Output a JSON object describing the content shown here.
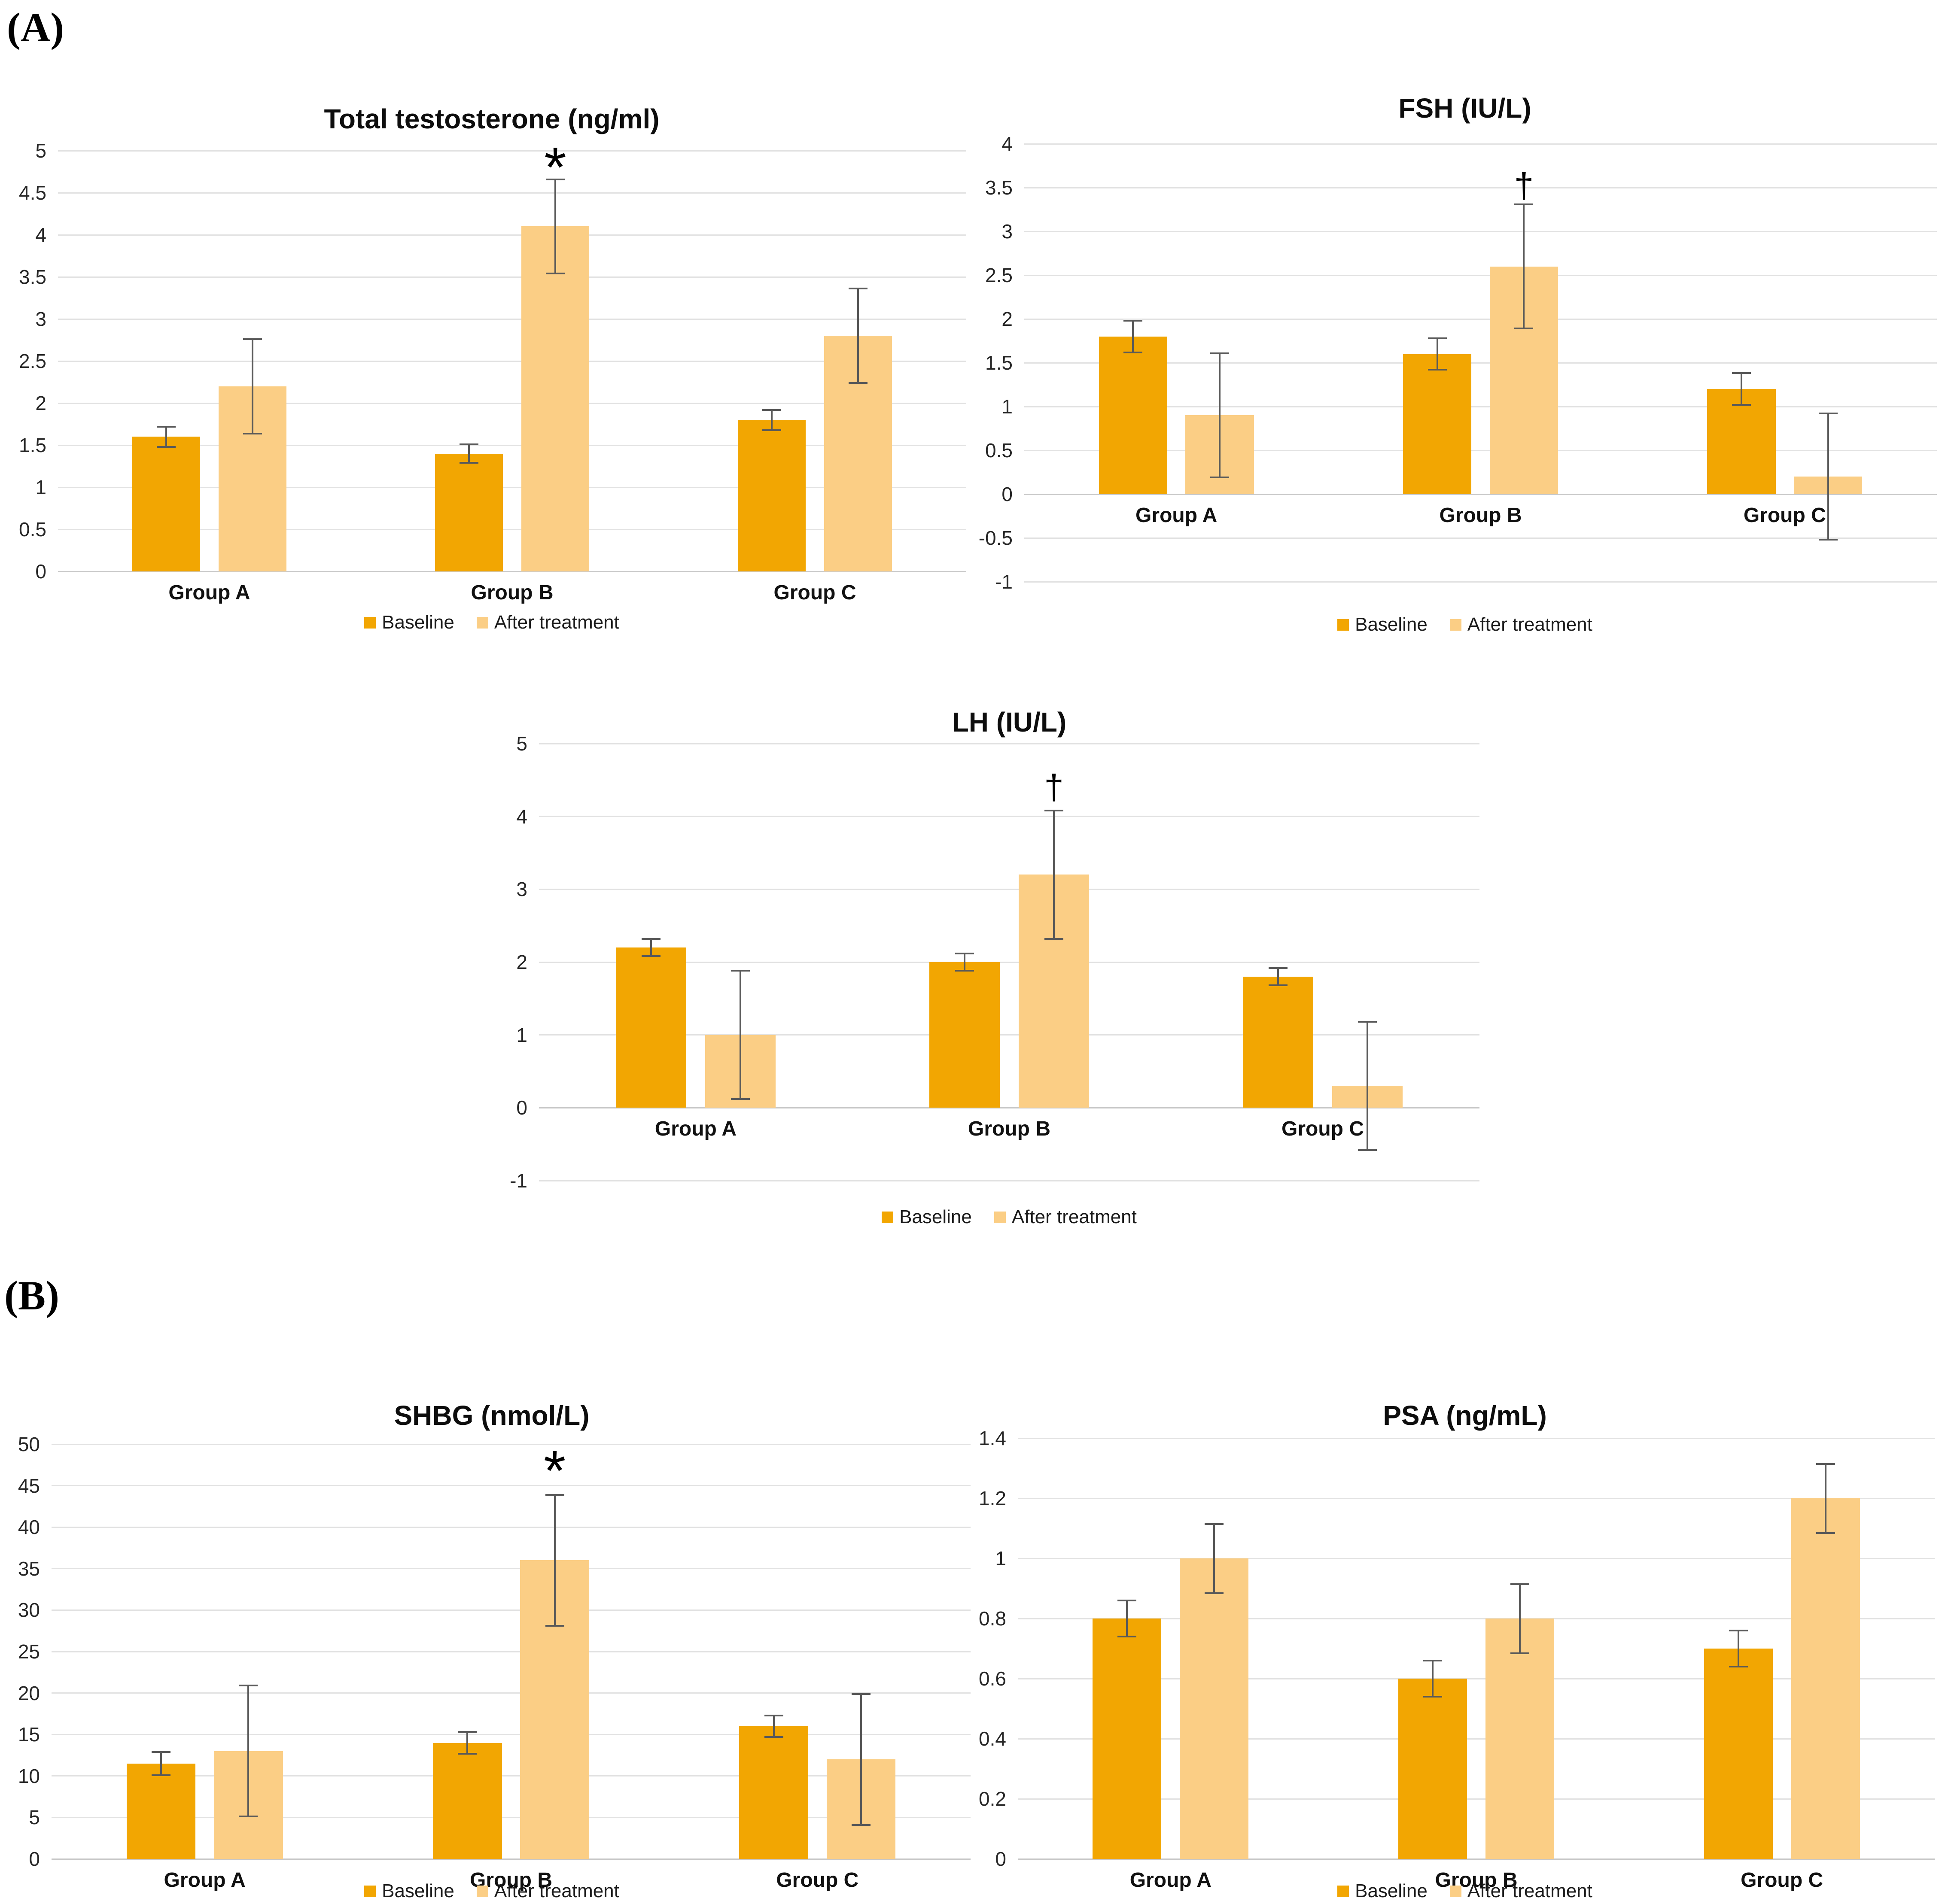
{
  "panels": {
    "a_label": "(A)",
    "b_label": "(B)"
  },
  "colors": {
    "baseline": "#F2A602",
    "after": "#FBCE85",
    "gridline": "#E2E2E2",
    "zero_line": "#C9C9C9",
    "error_bar": "#595959",
    "text": "#000000"
  },
  "legend": {
    "baseline": "Baseline",
    "after": "After treatment"
  },
  "chart_data": [
    {
      "type": "bar",
      "title": "Total testosterone (ng/ml)",
      "categories": [
        "Group A",
        "Group B",
        "Group C"
      ],
      "ylim": [
        0,
        5
      ],
      "yticks": [
        5,
        4.5,
        4,
        3.5,
        3,
        2.5,
        2,
        1.5,
        1,
        0.5,
        0
      ],
      "ytick_labels": [
        "5",
        "4.5",
        "4",
        "3.5",
        "3",
        "2.5",
        "2",
        "1.5",
        "1",
        "0.5",
        "0"
      ],
      "grid": true,
      "legend_position": "bottom",
      "series": [
        {
          "name": "Baseline",
          "values": [
            1.6,
            1.4,
            1.8
          ],
          "errors": [
            0.12,
            0.11,
            0.12
          ]
        },
        {
          "name": "After treatment",
          "values": [
            2.2,
            4.1,
            2.8
          ],
          "errors": [
            0.56,
            0.56,
            0.56
          ]
        }
      ],
      "annotations": [
        {
          "category": "Group B",
          "series": "After treatment",
          "symbol": "*",
          "y": 4.8
        }
      ]
    },
    {
      "type": "bar",
      "title": "FSH (IU/L)",
      "categories": [
        "Group A",
        "Group B",
        "Group C"
      ],
      "ylim": [
        -1,
        4
      ],
      "yticks": [
        4,
        3.5,
        3,
        2.5,
        2,
        1.5,
        1,
        0.5,
        0,
        -0.5,
        -1
      ],
      "ytick_labels": [
        "4",
        "3.5",
        "3",
        "2.5",
        "2",
        "1.5",
        "1",
        "0.5",
        "0",
        "-0.5",
        "-1"
      ],
      "grid": true,
      "legend_position": "bottom",
      "series": [
        {
          "name": "Baseline",
          "values": [
            1.8,
            1.6,
            1.2
          ],
          "errors": [
            0.18,
            0.18,
            0.18
          ]
        },
        {
          "name": "After treatment",
          "values": [
            0.9,
            2.6,
            0.2
          ],
          "errors": [
            0.71,
            0.71,
            0.72
          ]
        }
      ],
      "annotations": [
        {
          "category": "Group B",
          "series": "After treatment",
          "symbol": "†",
          "y": 3.52
        }
      ]
    },
    {
      "type": "bar",
      "title": "LH (IU/L)",
      "categories": [
        "Group A",
        "Group B",
        "Group C"
      ],
      "ylim": [
        -1,
        5
      ],
      "yticks": [
        5,
        4,
        3,
        2,
        1,
        0,
        -1
      ],
      "ytick_labels": [
        "5",
        "4",
        "3",
        "2",
        "1",
        "0",
        "-1"
      ],
      "grid": true,
      "legend_position": "bottom",
      "series": [
        {
          "name": "Baseline",
          "values": [
            2.2,
            2.0,
            1.8
          ],
          "errors": [
            0.12,
            0.12,
            0.12
          ]
        },
        {
          "name": "After treatment",
          "values": [
            1.0,
            3.2,
            0.3
          ],
          "errors": [
            0.88,
            0.88,
            0.88
          ]
        }
      ],
      "annotations": [
        {
          "category": "Group B",
          "series": "After treatment",
          "symbol": "†",
          "y": 4.4
        }
      ]
    },
    {
      "type": "bar",
      "title": "SHBG (nmol/L)",
      "categories": [
        "Group A",
        "Group B",
        "Group C"
      ],
      "ylim": [
        0,
        50
      ],
      "yticks": [
        50,
        45,
        40,
        35,
        30,
        25,
        20,
        15,
        10,
        5,
        0
      ],
      "ytick_labels": [
        "50",
        "45",
        "40",
        "35",
        "30",
        "25",
        "20",
        "15",
        "10",
        "5",
        "0"
      ],
      "grid": true,
      "legend_position": "bottom",
      "series": [
        {
          "name": "Baseline",
          "values": [
            11.5,
            14,
            16
          ],
          "errors": [
            1.4,
            1.3,
            1.3
          ]
        },
        {
          "name": "After treatment",
          "values": [
            13,
            36,
            12
          ],
          "errors": [
            7.9,
            7.9,
            7.9
          ]
        }
      ],
      "annotations": [
        {
          "category": "Group B",
          "series": "After treatment",
          "symbol": "*",
          "y": 46.8
        }
      ]
    },
    {
      "type": "bar",
      "title": "PSA (ng/mL)",
      "categories": [
        "Group A",
        "Group B",
        "Group C"
      ],
      "ylim": [
        0,
        1.4
      ],
      "yticks": [
        1.4,
        1.2,
        1,
        0.8,
        0.6,
        0.4,
        0.2,
        0
      ],
      "ytick_labels": [
        "1.4",
        "1.2",
        "1",
        "0.8",
        "0.6",
        "0.4",
        "0.2",
        "0"
      ],
      "grid": true,
      "legend_position": "bottom",
      "series": [
        {
          "name": "Baseline",
          "values": [
            0.8,
            0.6,
            0.7
          ],
          "errors": [
            0.06,
            0.06,
            0.06
          ]
        },
        {
          "name": "After treatment",
          "values": [
            1.0,
            0.8,
            1.2
          ],
          "errors": [
            0.115,
            0.115,
            0.115
          ]
        }
      ],
      "annotations": []
    }
  ]
}
